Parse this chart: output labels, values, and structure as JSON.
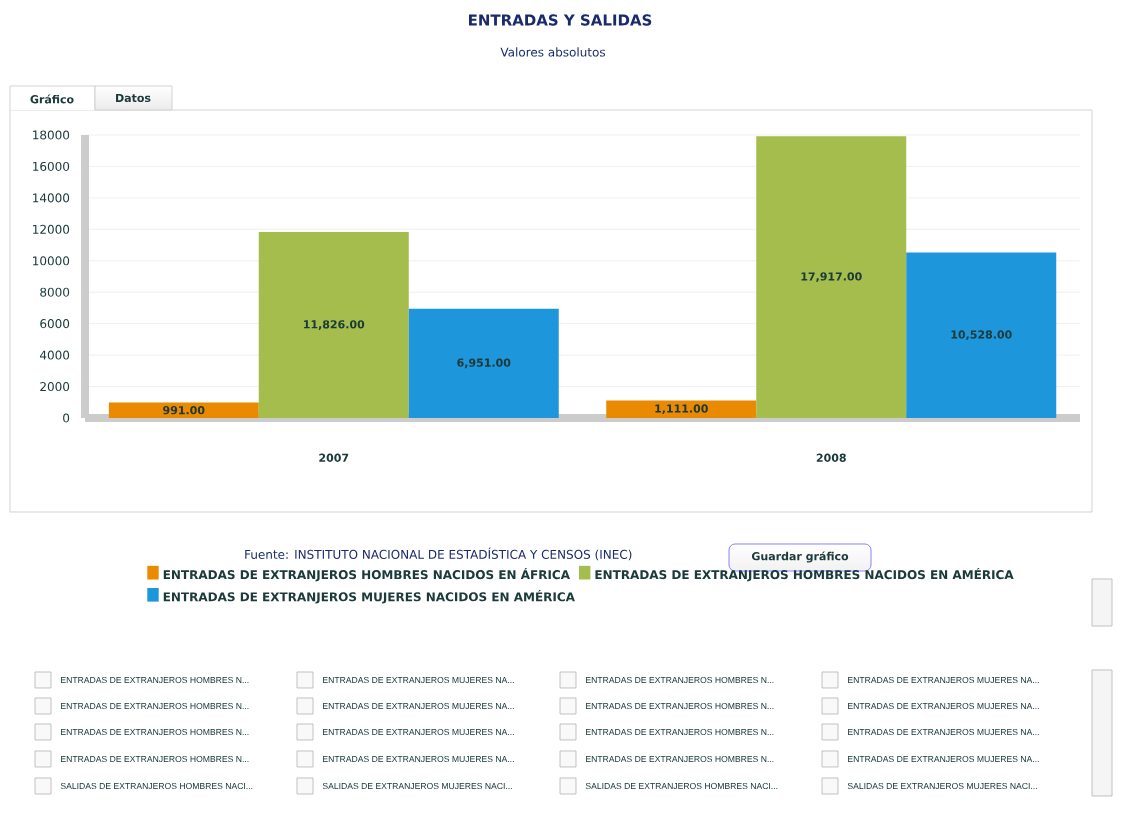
{
  "chart_data": {
    "type": "bar",
    "title": "ENTRADAS Y SALIDAS",
    "subtitle": "Valores absolutos",
    "categories": [
      "2007",
      "2008"
    ],
    "series": [
      {
        "name": "ENTRADAS DE EXTRANJEROS HOMBRES NACIDOS EN ÁFRICA",
        "color": "#ea8a00",
        "values": [
          991,
          1111
        ],
        "value_labels": [
          "991.00",
          "1,111.00"
        ]
      },
      {
        "name": "ENTRADAS DE EXTRANJEROS HOMBRES NACIDOS EN AMÉRICA",
        "color": "#a4bd4c",
        "values": [
          11826,
          17917
        ],
        "value_labels": [
          "11,826.00",
          "17,917.00"
        ]
      },
      {
        "name": "ENTRADAS DE EXTRANJEROS MUJERES NACIDOS EN AMÉRICA",
        "color": "#1e96dc",
        "values": [
          6951,
          10528
        ],
        "value_labels": [
          "6,951.00",
          "10,528.00"
        ]
      }
    ],
    "ylim": [
      0,
      18000
    ],
    "yticks": [
      0,
      2000,
      4000,
      6000,
      8000,
      10000,
      12000,
      14000,
      16000,
      18000
    ],
    "grid": "y",
    "legend": "bottom",
    "annotations": [
      "Gráfico",
      "Datos",
      "Fuente:   INSTITUTO NACIONAL DE ESTADÍSTICA Y CENSOS (INEC)",
      "Guardar gráfico",
      "ENTRADAS DE EXTRANJEROS HOMBRES N...",
      "ENTRADAS DE EXTRANJEROS MUJERES NA...",
      "ENTRADAS DE EXTRANJEROS HOMBRES N...",
      "ENTRADAS DE EXTRANJEROS MUJERES NA...",
      "ENTRADAS DE EXTRANJEROS HOMBRES N...",
      "ENTRADAS DE EXTRANJEROS MUJERES NA...",
      "ENTRADAS DE EXTRANJEROS HOMBRES N...",
      "ENTRADAS DE EXTRANJEROS MUJERES NA...",
      "ENTRADAS DE EXTRANJEROS HOMBRES N...",
      "ENTRADAS DE EXTRANJEROS MUJERES NA...",
      "ENTRADAS DE EXTRANJEROS HOMBRES N...",
      "ENTRADAS DE EXTRANJEROS MUJERES NA...",
      "ENTRADAS DE EXTRANJEROS HOMBRES N...",
      "ENTRADAS DE EXTRANJEROS MUJERES NA...",
      "ENTRADAS DE EXTRANJEROS HOMBRES N...",
      "ENTRADAS DE EXTRANJEROS MUJERES NA...",
      "SALIDAS DE EXTRANJEROS HOMBRES NACI...",
      "SALIDAS DE EXTRANJEROS MUJERES NACI...",
      "SALIDAS DE EXTRANJEROS HOMBRES NACI...",
      "SALIDAS DE EXTRANJEROS MUJERES NACI..."
    ]
  }
}
